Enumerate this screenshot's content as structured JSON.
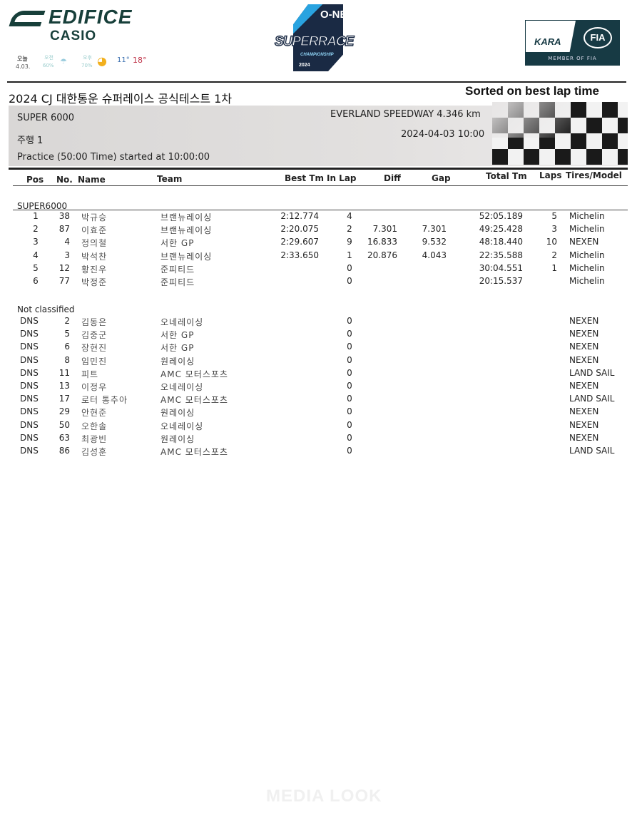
{
  "logos": {
    "edifice": "EDIFICE",
    "casio": "CASIO",
    "superrace_one": "O-NE",
    "superrace": "SUPERRACE",
    "superrace_champ": "CHAMPIONSHIP",
    "superrace_year": "2024",
    "kara": "KARA",
    "fia": "FIA",
    "kara_member": "MEMBER OF FIA"
  },
  "weather": {
    "today": "오늘",
    "date": "4.03.",
    "am_label": "오전",
    "am_rain": "60%",
    "pm_label": "오후",
    "pm_rain": "70%",
    "low": "11°",
    "high": "18°",
    "low_color": "#3a6fb0",
    "high_color": "#c0354a"
  },
  "header": {
    "title": "2024 CJ 대한통운 슈퍼레이스 공식테스트 1차",
    "sorted": "Sorted on best lap time",
    "class": "SUPER 6000",
    "venue": "EVERLAND SPEEDWAY 4.346 km",
    "session": "주행 1",
    "datetime": "2024-04-03 10:00",
    "started": "Practice (50:00 Time) started at 10:00:00"
  },
  "columns": {
    "pos": "Pos",
    "no": "No.",
    "name": "Name",
    "team": "Team",
    "best": "Best Tm",
    "inlap": "In Lap",
    "diff": "Diff",
    "gap": "Gap",
    "total": "Total Tm",
    "laps": "Laps",
    "tires": "Tires/Model"
  },
  "classified": {
    "label": "SUPER6000",
    "rows": [
      {
        "pos": "1",
        "no": "38",
        "name": "박규승",
        "team": "브랜뉴레이싱",
        "best": "2:12.774",
        "inlap": "4",
        "diff": "",
        "gap": "",
        "total": "52:05.189",
        "laps": "5",
        "tires": "Michelin"
      },
      {
        "pos": "2",
        "no": "87",
        "name": "이효준",
        "team": "브랜뉴레이싱",
        "best": "2:20.075",
        "inlap": "2",
        "diff": "7.301",
        "gap": "7.301",
        "total": "49:25.428",
        "laps": "3",
        "tires": "Michelin"
      },
      {
        "pos": "3",
        "no": "4",
        "name": "정의철",
        "team": "서한 GP",
        "best": "2:29.607",
        "inlap": "9",
        "diff": "16.833",
        "gap": "9.532",
        "total": "48:18.440",
        "laps": "10",
        "tires": "NEXEN"
      },
      {
        "pos": "4",
        "no": "3",
        "name": "박석찬",
        "team": "브랜뉴레이싱",
        "best": "2:33.650",
        "inlap": "1",
        "diff": "20.876",
        "gap": "4.043",
        "total": "22:35.588",
        "laps": "2",
        "tires": "Michelin"
      },
      {
        "pos": "5",
        "no": "12",
        "name": "황진우",
        "team": "준피티드",
        "best": "",
        "inlap": "0",
        "diff": "",
        "gap": "",
        "total": "30:04.551",
        "laps": "1",
        "tires": "Michelin"
      },
      {
        "pos": "6",
        "no": "77",
        "name": "박정준",
        "team": "준피티드",
        "best": "",
        "inlap": "0",
        "diff": "",
        "gap": "",
        "total": "20:15.537",
        "laps": "",
        "tires": "Michelin"
      }
    ]
  },
  "not_classified": {
    "label": "Not classified",
    "rows": [
      {
        "pos": "DNS",
        "no": "2",
        "name": "김동은",
        "team": "오네레이싱",
        "inlap": "0",
        "tires": "NEXEN"
      },
      {
        "pos": "DNS",
        "no": "5",
        "name": "김중군",
        "team": "서한 GP",
        "inlap": "0",
        "tires": "NEXEN"
      },
      {
        "pos": "DNS",
        "no": "6",
        "name": "장현진",
        "team": "서한 GP",
        "inlap": "0",
        "tires": "NEXEN"
      },
      {
        "pos": "DNS",
        "no": "8",
        "name": "임민진",
        "team": "원레이싱",
        "inlap": "0",
        "tires": "NEXEN"
      },
      {
        "pos": "DNS",
        "no": "11",
        "name": "피트",
        "team": "AMC 모터스포츠",
        "inlap": "0",
        "tires": "LAND SAIL"
      },
      {
        "pos": "DNS",
        "no": "13",
        "name": "이정우",
        "team": "오네레이싱",
        "inlap": "0",
        "tires": "NEXEN"
      },
      {
        "pos": "DNS",
        "no": "17",
        "name": "로터 통추아",
        "team": "AMC 모터스포츠",
        "inlap": "0",
        "tires": "LAND SAIL"
      },
      {
        "pos": "DNS",
        "no": "29",
        "name": "안현준",
        "team": "원레이싱",
        "inlap": "0",
        "tires": "NEXEN"
      },
      {
        "pos": "DNS",
        "no": "50",
        "name": "오한솔",
        "team": "오네레이싱",
        "inlap": "0",
        "tires": "NEXEN"
      },
      {
        "pos": "DNS",
        "no": "63",
        "name": "최광빈",
        "team": "원레이싱",
        "inlap": "0",
        "tires": "NEXEN"
      },
      {
        "pos": "DNS",
        "no": "86",
        "name": "김성훈",
        "team": "AMC 모터스포츠",
        "inlap": "0",
        "tires": "LAND SAIL"
      }
    ]
  },
  "watermark": "MEDIA LOOK"
}
